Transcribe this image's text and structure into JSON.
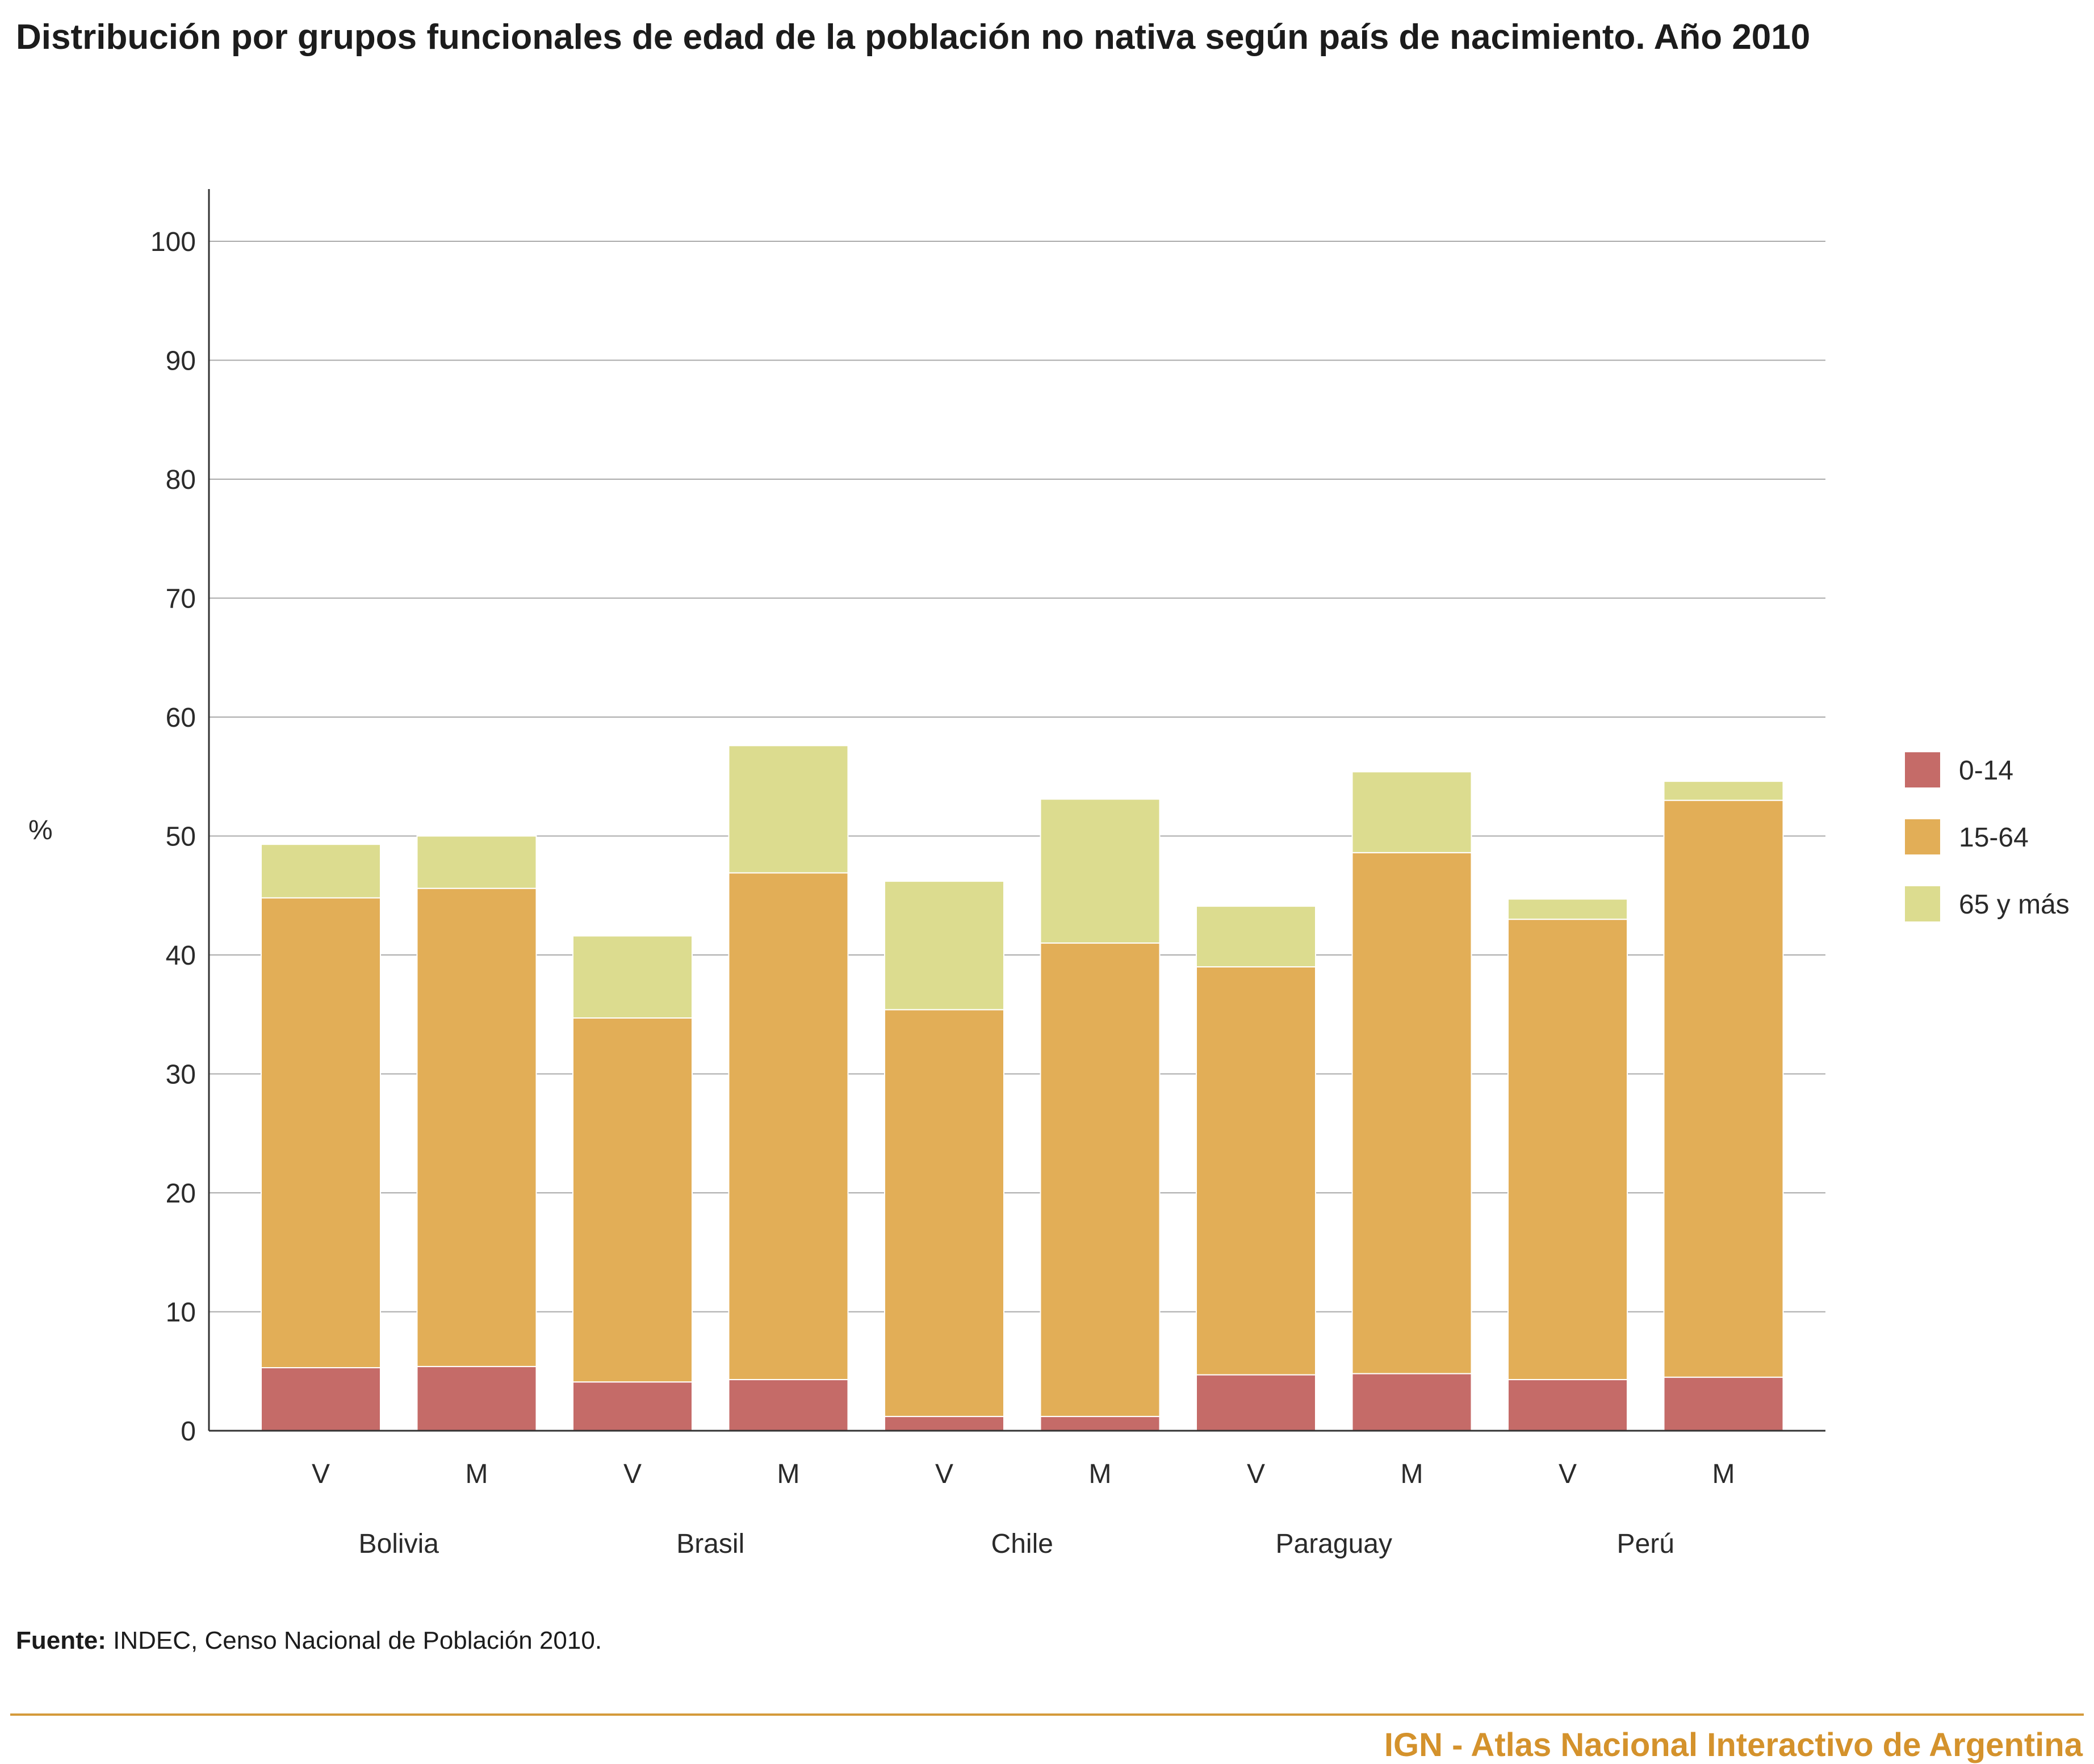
{
  "title": "Distribución por grupos funcionales de edad de la población no nativa según país de nacimiento. Año 2010",
  "source_label": "Fuente:",
  "source_text": "INDEC, Censo Nacional de Población 2010.",
  "footer": "IGN - Atlas Nacional Interactivo de Argentina",
  "colors": {
    "c0_14": "#c56b68",
    "c15_64": "#e2ae57",
    "c65": "#dcdc8f",
    "grid": "#aaaaaa",
    "axis": "#333333",
    "text": "#2a2a2a"
  },
  "chart_data": {
    "type": "bar",
    "stacked": true,
    "ylabel": "%",
    "ylim": [
      0,
      100
    ],
    "yticks": [
      0,
      10,
      20,
      30,
      40,
      50,
      60,
      70,
      80,
      90,
      100
    ],
    "grid": true,
    "legend_position": "right",
    "groups": [
      "Bolivia",
      "Brasil",
      "Chile",
      "Paraguay",
      "Perú"
    ],
    "categories": [
      "V",
      "M",
      "V",
      "M",
      "V",
      "M",
      "V",
      "M",
      "V",
      "M"
    ],
    "series": [
      {
        "name": "0-14",
        "values": [
          5.3,
          5.4,
          4.1,
          4.3,
          1.2,
          1.2,
          4.7,
          4.8,
          4.3,
          4.5
        ]
      },
      {
        "name": "15-64",
        "values": [
          39.5,
          40.2,
          30.6,
          42.6,
          34.2,
          39.8,
          34.3,
          43.8,
          38.7,
          48.5
        ]
      },
      {
        "name": "65 y más",
        "values": [
          4.5,
          4.4,
          6.9,
          10.7,
          10.8,
          12.1,
          5.1,
          6.8,
          1.7,
          1.6
        ]
      }
    ]
  }
}
